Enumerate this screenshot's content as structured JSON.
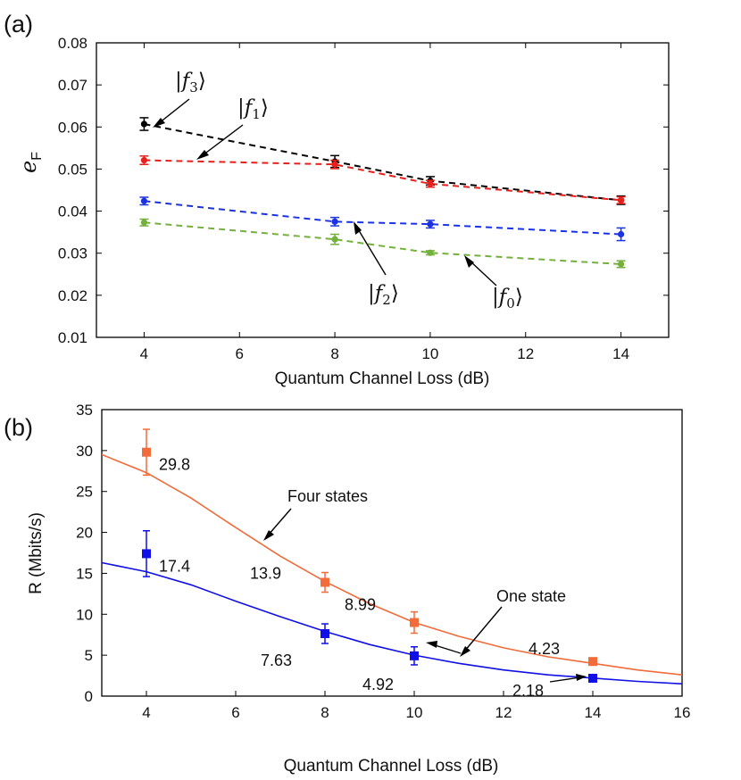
{
  "chart_data": [
    {
      "type": "line",
      "panel": "(a)",
      "xlabel": "Quantum Channel Loss (dB)",
      "ylabel": "e",
      "ylabel_sub": "F",
      "xlim": [
        3,
        15
      ],
      "ylim": [
        0.01,
        0.08
      ],
      "xticks": [
        4,
        6,
        8,
        10,
        12,
        14
      ],
      "yticks": [
        "0.01",
        "0.02",
        "0.03",
        "0.04",
        "0.05",
        "0.06",
        "0.07",
        "0.08"
      ],
      "x": [
        4,
        8,
        10,
        14
      ],
      "series": [
        {
          "name": "f3",
          "color": "#000000",
          "values": [
            0.0607,
            0.0518,
            0.0472,
            0.0426
          ],
          "errors": [
            0.0015,
            0.0014,
            0.001,
            0.001
          ]
        },
        {
          "name": "f1",
          "color": "#e8201c",
          "values": [
            0.0521,
            0.0511,
            0.0465,
            0.0426
          ],
          "errors": [
            0.001,
            0.001,
            0.0008,
            0.0008
          ]
        },
        {
          "name": "f2",
          "color": "#1b32e0",
          "values": [
            0.0424,
            0.0375,
            0.0369,
            0.0345
          ],
          "errors": [
            0.0009,
            0.001,
            0.0009,
            0.0015
          ]
        },
        {
          "name": "f0",
          "color": "#74b03c",
          "values": [
            0.0373,
            0.0333,
            0.0301,
            0.0274
          ],
          "errors": [
            0.0008,
            0.0012,
            0.0005,
            0.0008
          ]
        }
      ],
      "annotations": [
        {
          "ket": "f",
          "sub": "3"
        },
        {
          "ket": "f",
          "sub": "1"
        },
        {
          "ket": "f",
          "sub": "2"
        },
        {
          "ket": "f",
          "sub": "0"
        }
      ]
    },
    {
      "type": "scatter",
      "panel": "(b)",
      "xlabel": "Quantum Channel Loss (dB)",
      "ylabel": "R (Mbits/s)",
      "xlim": [
        3,
        16
      ],
      "ylim": [
        0,
        35
      ],
      "xticks": [
        4,
        6,
        8,
        10,
        12,
        14,
        16
      ],
      "yticks": [
        0,
        5,
        10,
        15,
        20,
        25,
        30,
        35
      ],
      "x": [
        4,
        8,
        10,
        14
      ],
      "series": [
        {
          "name": "Four states",
          "color": "#f26b3a",
          "values": [
            29.8,
            13.9,
            8.99,
            4.23
          ],
          "errors": [
            2.8,
            1.2,
            1.3,
            0.4
          ],
          "labels": [
            "29.8",
            "13.9",
            "8.99",
            "4.23"
          ]
        },
        {
          "name": "One state",
          "color": "#1010e6",
          "values": [
            17.4,
            7.63,
            4.92,
            2.18
          ],
          "errors": [
            2.8,
            1.2,
            1.1,
            0.3
          ],
          "labels": [
            "17.4",
            "7.63",
            "4.92",
            "2.18"
          ]
        }
      ],
      "curves": [
        {
          "name": "Four states fit",
          "color": "#f26b3a",
          "x": [
            3,
            4,
            5,
            6,
            7,
            8,
            9,
            10,
            11,
            12,
            13,
            14,
            15,
            16
          ],
          "y": [
            29.5,
            27.3,
            24.2,
            20.6,
            17.1,
            14.0,
            11.3,
            9.0,
            7.3,
            5.9,
            4.8,
            4.0,
            3.2,
            2.6
          ]
        },
        {
          "name": "One state fit",
          "color": "#1010e6",
          "x": [
            3,
            4,
            5,
            6,
            7,
            8,
            9,
            10,
            11,
            12,
            13,
            14,
            15,
            16
          ],
          "y": [
            16.3,
            15.2,
            13.6,
            11.6,
            9.7,
            7.9,
            6.3,
            5.0,
            4.0,
            3.2,
            2.6,
            2.2,
            1.8,
            1.5
          ]
        }
      ],
      "annotations": [
        "Four states",
        "One state"
      ]
    }
  ]
}
